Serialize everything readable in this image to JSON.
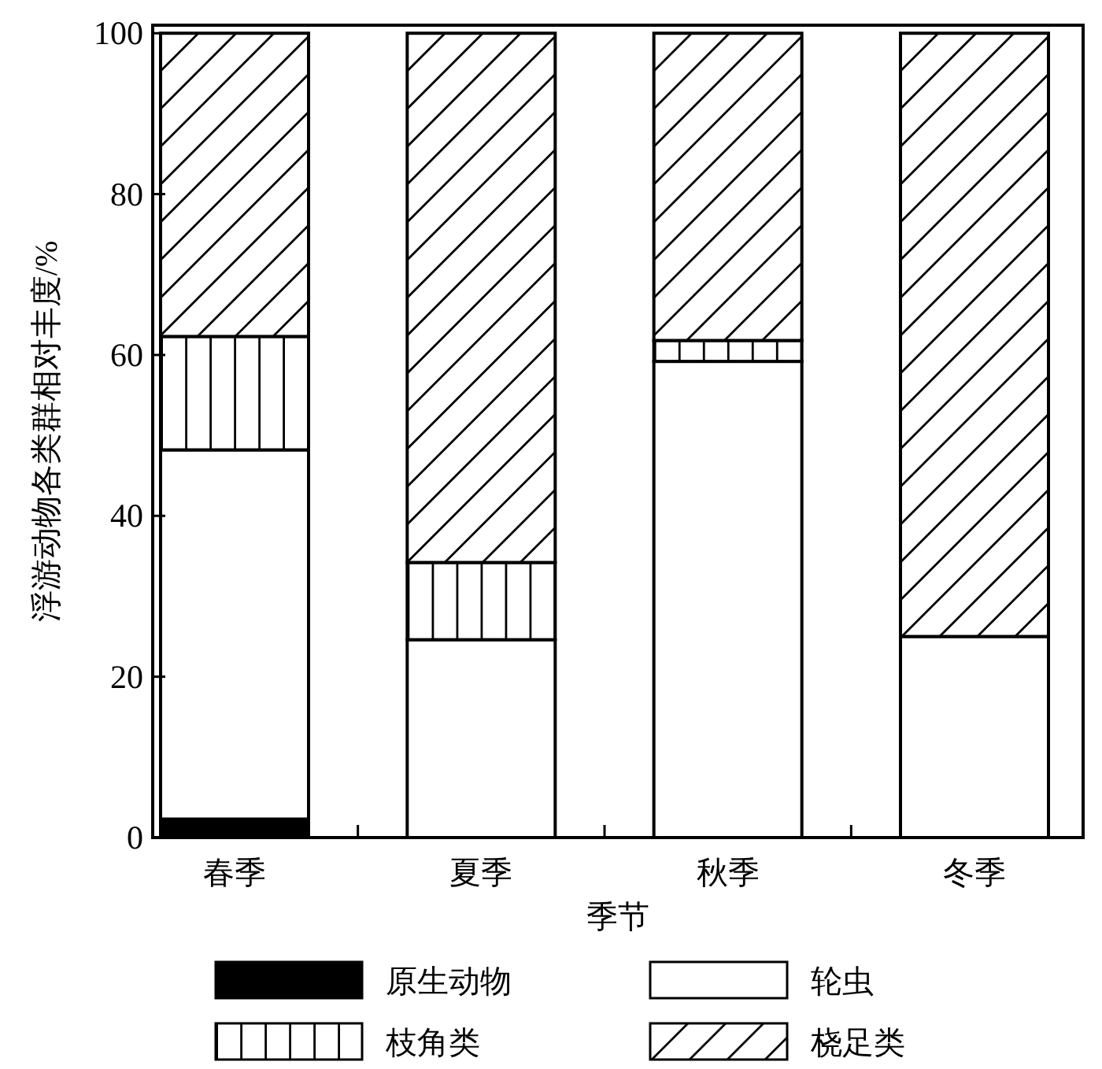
{
  "chart_data": {
    "type": "bar",
    "stacked": true,
    "xlabel": "季节",
    "ylabel": "浮游动物各类群相对丰度/%",
    "categories": [
      "春季",
      "夏季",
      "秋季",
      "冬季"
    ],
    "series": [
      {
        "name": "原生动物",
        "color": "#000000",
        "values": [
          2.3,
          0,
          0,
          0
        ]
      },
      {
        "name": "轮虫",
        "color": "#ffffff",
        "values": [
          45.9,
          24.6,
          59.2,
          25
        ]
      },
      {
        "name": "枝角类",
        "color": "#ffffff",
        "values": [
          14.1,
          9.6,
          2.6,
          0
        ]
      },
      {
        "name": "桡足类",
        "color": "#ffffff",
        "values": [
          37.7,
          65.8,
          38.2,
          75
        ]
      }
    ],
    "ylim": [
      0,
      101
    ],
    "yticks": [
      0,
      20,
      40,
      60,
      80,
      100
    ],
    "grid": false,
    "legend": "bottom"
  }
}
